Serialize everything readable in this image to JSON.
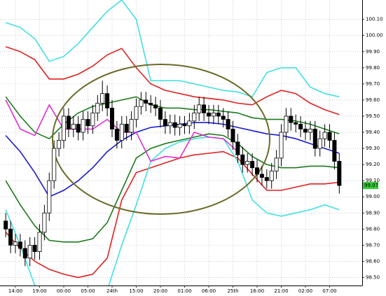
{
  "chart_data": {
    "type": "candlestick",
    "categories": [
      null,
      null,
      "14:00",
      null,
      null,
      null,
      null,
      "19:00",
      null,
      null,
      null,
      null,
      "00:00",
      null,
      null,
      null,
      null,
      "05:00",
      null,
      null,
      null,
      null,
      "24th",
      null,
      null,
      null,
      null,
      "15:00",
      null,
      null,
      null,
      null,
      "20:00",
      null,
      null,
      null,
      null,
      "01:00",
      null,
      null,
      null,
      null,
      "06:00",
      null,
      null,
      null,
      null,
      "25th",
      null,
      null,
      null,
      null,
      "16:00",
      null,
      null,
      null,
      null,
      "21:00",
      null,
      null,
      null,
      null,
      "02:00",
      null,
      null,
      null,
      null,
      "07:00",
      null,
      null
    ],
    "open": [
      98.85,
      98.8,
      98.7,
      98.72,
      98.68,
      98.62,
      98.7,
      98.66,
      98.78,
      98.9,
      99.1,
      99.3,
      99.35,
      99.5,
      99.42,
      99.45,
      99.4,
      99.48,
      99.44,
      99.52,
      99.58,
      99.64,
      99.55,
      99.42,
      99.35,
      99.45,
      99.4,
      99.48,
      99.56,
      99.6,
      99.58,
      99.57,
      99.55,
      99.48,
      99.44,
      99.46,
      99.43,
      99.45,
      99.44,
      99.47,
      99.52,
      99.57,
      99.52,
      99.5,
      99.52,
      99.5,
      99.48,
      99.42,
      99.34,
      99.26,
      99.2,
      99.22,
      99.18,
      99.14,
      99.12,
      99.1,
      99.16,
      99.24,
      99.4,
      99.5,
      99.46,
      99.45,
      99.42,
      99.4,
      99.42,
      99.3,
      99.36,
      99.4,
      99.35,
      99.22
    ],
    "high": [
      98.9,
      98.85,
      98.77,
      98.77,
      98.73,
      98.75,
      98.75,
      98.83,
      98.95,
      99.15,
      99.35,
      99.4,
      99.55,
      99.55,
      99.5,
      99.5,
      99.53,
      99.53,
      99.57,
      99.63,
      99.72,
      99.69,
      99.6,
      99.47,
      99.5,
      99.5,
      99.53,
      99.61,
      99.65,
      99.65,
      99.63,
      99.62,
      99.6,
      99.53,
      99.51,
      99.51,
      99.5,
      99.5,
      99.52,
      99.57,
      99.62,
      99.62,
      99.57,
      99.57,
      99.57,
      99.55,
      99.53,
      99.47,
      99.39,
      99.31,
      99.27,
      99.27,
      99.23,
      99.19,
      99.17,
      99.21,
      99.29,
      99.45,
      99.55,
      99.55,
      99.51,
      99.5,
      99.47,
      99.47,
      99.47,
      99.41,
      99.45,
      99.45,
      99.4,
      99.27
    ],
    "low": [
      98.75,
      98.65,
      98.65,
      98.63,
      98.57,
      98.57,
      98.61,
      98.61,
      98.73,
      98.85,
      99.05,
      99.25,
      99.3,
      99.37,
      99.37,
      99.35,
      99.35,
      99.39,
      99.39,
      99.47,
      99.53,
      99.5,
      99.37,
      99.3,
      99.3,
      99.35,
      99.35,
      99.43,
      99.51,
      99.53,
      99.52,
      99.5,
      99.43,
      99.39,
      99.39,
      99.38,
      99.38,
      99.39,
      99.39,
      99.42,
      99.47,
      99.47,
      99.45,
      99.45,
      99.45,
      99.43,
      99.37,
      99.29,
      99.21,
      99.15,
      99.15,
      99.13,
      99.09,
      99.07,
      99.05,
      99.05,
      99.11,
      99.19,
      99.35,
      99.41,
      99.4,
      99.37,
      99.35,
      99.35,
      99.25,
      99.25,
      99.31,
      99.3,
      99.17,
      99.02
    ],
    "close": [
      98.8,
      98.7,
      98.72,
      98.68,
      98.62,
      98.7,
      98.66,
      98.78,
      98.9,
      99.1,
      99.3,
      99.35,
      99.5,
      99.42,
      99.45,
      99.4,
      99.48,
      99.44,
      99.52,
      99.58,
      99.64,
      99.55,
      99.42,
      99.35,
      99.45,
      99.4,
      99.48,
      99.56,
      99.6,
      99.58,
      99.57,
      99.55,
      99.48,
      99.44,
      99.46,
      99.43,
      99.45,
      99.44,
      99.47,
      99.52,
      99.57,
      99.52,
      99.5,
      99.52,
      99.5,
      99.48,
      99.42,
      99.34,
      99.26,
      99.2,
      99.22,
      99.18,
      99.14,
      99.12,
      99.1,
      99.16,
      99.24,
      99.4,
      99.5,
      99.46,
      99.45,
      99.42,
      99.4,
      99.42,
      99.3,
      99.36,
      99.4,
      99.35,
      99.22,
      99.07
    ],
    "up_color": "#ffffff",
    "down_color": "#000000",
    "overlays": [
      {
        "color": "#44e0e0",
        "x": [
          0,
          3,
          6,
          9,
          12,
          15,
          18,
          21,
          24,
          27,
          30,
          33,
          36,
          39,
          42,
          45,
          48,
          51,
          54,
          57,
          60,
          63,
          66,
          69
        ],
        "values": [
          100.08,
          100.05,
          99.98,
          99.84,
          99.87,
          99.95,
          100.05,
          100.15,
          100.22,
          100.1,
          99.72,
          99.72,
          99.72,
          99.7,
          99.68,
          99.66,
          99.65,
          99.62,
          99.77,
          99.8,
          99.8,
          99.68,
          99.64,
          99.62
        ]
      },
      {
        "color": "#e02020",
        "x": [
          0,
          3,
          6,
          9,
          12,
          15,
          18,
          21,
          24,
          27,
          30,
          33,
          36,
          39,
          42,
          45,
          48,
          51,
          54,
          57,
          60,
          63,
          66,
          69
        ],
        "values": [
          99.93,
          99.9,
          99.85,
          99.73,
          99.73,
          99.76,
          99.81,
          99.88,
          99.92,
          99.8,
          99.7,
          99.66,
          99.64,
          99.62,
          99.61,
          99.6,
          99.58,
          99.57,
          99.62,
          99.66,
          99.64,
          99.58,
          99.54,
          99.51
        ]
      },
      {
        "color": "#1e7a1e",
        "x": [
          0,
          3,
          6,
          9,
          12,
          15,
          18,
          21,
          24,
          27,
          30,
          33,
          36,
          39,
          42,
          45,
          48,
          51,
          54,
          57,
          60,
          63,
          66,
          69
        ],
        "values": [
          99.62,
          99.5,
          99.4,
          99.36,
          99.45,
          99.52,
          99.56,
          99.58,
          99.6,
          99.62,
          99.57,
          99.55,
          99.55,
          99.54,
          99.54,
          99.53,
          99.52,
          99.49,
          99.48,
          99.48,
          99.47,
          99.45,
          99.42,
          99.39
        ]
      },
      {
        "color": "#1a1ad0",
        "x": [
          0,
          3,
          6,
          9,
          12,
          15,
          18,
          21,
          24,
          27,
          30,
          33,
          36,
          39,
          42,
          45,
          48,
          51,
          54,
          57,
          60,
          63,
          66,
          69
        ],
        "values": [
          99.38,
          99.28,
          99.15,
          99.0,
          99.04,
          99.1,
          99.18,
          99.28,
          99.35,
          99.4,
          99.43,
          99.44,
          99.45,
          99.46,
          99.46,
          99.45,
          99.43,
          99.41,
          99.39,
          99.38,
          99.36,
          99.33,
          99.3,
          99.27
        ]
      },
      {
        "color": "#1e7a1e",
        "x": [
          0,
          3,
          6,
          9,
          12,
          15,
          18,
          21,
          24,
          27,
          30,
          33,
          36,
          39,
          42,
          45,
          48,
          51,
          54,
          57,
          60,
          63,
          66,
          69
        ],
        "values": [
          99.1,
          98.95,
          98.82,
          98.73,
          98.72,
          98.72,
          98.74,
          98.84,
          99.04,
          99.24,
          99.3,
          99.33,
          99.35,
          99.37,
          99.39,
          99.38,
          99.33,
          99.25,
          99.2,
          99.18,
          99.18,
          99.19,
          99.19,
          99.18
        ]
      },
      {
        "color": "#e02020",
        "x": [
          0,
          3,
          6,
          9,
          12,
          15,
          18,
          21,
          24,
          27,
          30,
          33,
          36,
          39,
          42,
          45,
          48,
          51,
          54,
          57,
          60,
          63,
          66,
          69
        ],
        "values": [
          98.78,
          98.68,
          98.6,
          98.55,
          98.52,
          98.5,
          98.52,
          98.62,
          98.98,
          99.15,
          99.18,
          99.21,
          99.24,
          99.26,
          99.27,
          99.28,
          99.24,
          99.14,
          99.04,
          99.04,
          99.06,
          99.08,
          99.08,
          99.09
        ]
      },
      {
        "color": "#44e0e0",
        "x": [
          0,
          3,
          6,
          9,
          12,
          15,
          18,
          21,
          24,
          27,
          30,
          33,
          36,
          39,
          42,
          45,
          48,
          51,
          54,
          57,
          60,
          63,
          66,
          69
        ],
        "values": [
          98.92,
          98.7,
          98.45,
          98.4,
          98.38,
          98.36,
          98.36,
          98.42,
          98.7,
          98.95,
          99.22,
          99.3,
          99.34,
          99.36,
          99.37,
          99.36,
          99.22,
          98.98,
          98.9,
          98.88,
          98.9,
          98.92,
          98.95,
          98.92
        ]
      },
      {
        "color": "#e030d0",
        "x": [
          0,
          3,
          6,
          9,
          12,
          15,
          18,
          21,
          24,
          27,
          30,
          33,
          36,
          39,
          42,
          45,
          48
        ],
        "values": [
          99.6,
          99.42,
          99.38,
          99.57,
          99.42,
          99.42,
          99.42,
          99.48,
          99.4,
          99.4,
          99.22,
          99.25,
          99.24,
          99.4,
          99.37,
          99.36,
          99.28
        ]
      }
    ],
    "ylim": [
      98.45,
      100.22
    ],
    "yticks": [
      {
        "value": 98.5,
        "label": "98.50"
      },
      {
        "value": 98.6,
        "label": "98.60"
      },
      {
        "value": 98.7,
        "label": "98.70"
      },
      {
        "value": 98.8,
        "label": "98.80"
      },
      {
        "value": 98.9,
        "label": "98.90"
      },
      {
        "value": 99.0,
        "label": "99.00"
      },
      {
        "value": 99.1,
        "label": "99.10"
      },
      {
        "value": 99.2,
        "label": "99.20"
      },
      {
        "value": 99.3,
        "label": "99.30"
      },
      {
        "value": 99.4,
        "label": "99.40"
      },
      {
        "value": 99.5,
        "label": "99.50"
      },
      {
        "value": 99.6,
        "label": "99.60"
      },
      {
        "value": 99.7,
        "label": "99.70"
      },
      {
        "value": 99.8,
        "label": "99.80"
      },
      {
        "value": 99.9,
        "label": "99.90"
      },
      {
        "value": 100.0,
        "label": "100.00"
      },
      {
        "value": 100.1,
        "label": "100.10"
      }
    ],
    "grid": true,
    "last_price": 99.07,
    "last_price_color": "#33cc33"
  }
}
